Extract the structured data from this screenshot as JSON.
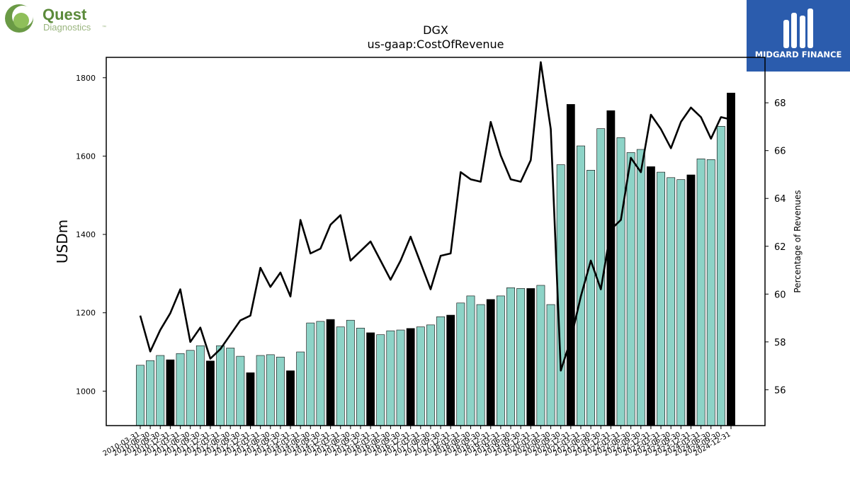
{
  "logos": {
    "left_line1": "Quest",
    "left_line2": "Diagnostics",
    "left_mark": "™",
    "right_name": "MIDGARD FINANCE",
    "brand_green": "#5b8a3a",
    "brand_blue": "#2b5cad"
  },
  "chart_data": {
    "type": "bar",
    "title": "DGX",
    "subtitle": "us-gaap:CostOfRevenue",
    "ylabel": "USDm",
    "y2label": "Percentage of Revenues",
    "ylim": [
      912,
      1852
    ],
    "y2lim": [
      54.5,
      69.9
    ],
    "yticks": [
      1000,
      1200,
      1400,
      1600,
      1800
    ],
    "y2ticks": [
      56,
      58,
      60,
      62,
      64,
      66,
      68
    ],
    "bar_color": "#8dd3c7",
    "highlight_color": "#000000",
    "highlight_rule": "fiscal year-end quarters (12-31) drawn in black",
    "line_color": "#000000",
    "categories": [
      "2010-03-31",
      "2010-06-30",
      "2010-09-30",
      "2010-12-31",
      "2011-03-31",
      "2011-06-30",
      "2011-09-30",
      "2011-12-31",
      "2012-03-31",
      "2012-06-30",
      "2012-09-30",
      "2012-12-31",
      "2013-03-31",
      "2013-06-30",
      "2013-09-30",
      "2013-12-31",
      "2014-03-31",
      "2014-06-30",
      "2014-09-30",
      "2014-12-31",
      "2015-03-31",
      "2015-06-30",
      "2015-09-30",
      "2015-12-31",
      "2016-03-31",
      "2016-06-30",
      "2016-09-30",
      "2016-12-31",
      "2017-03-31",
      "2017-06-30",
      "2017-09-30",
      "2017-12-31",
      "2018-03-31",
      "2018-06-30",
      "2018-09-30",
      "2018-12-31",
      "2019-03-31",
      "2019-06-30",
      "2019-09-30",
      "2019-12-31",
      "2020-03-31",
      "2020-06-30",
      "2020-09-30",
      "2020-12-31",
      "2021-03-31",
      "2021-06-30",
      "2021-09-30",
      "2021-12-31",
      "2022-03-31",
      "2022-06-30",
      "2022-09-30",
      "2022-12-31",
      "2023-03-31",
      "2023-06-30",
      "2023-09-30",
      "2023-12-31",
      "2024-03-31",
      "2024-06-30",
      "2024-09-30",
      "2024-12-31"
    ],
    "series": [
      {
        "kind": "bar",
        "axis": "left",
        "values": [
          1066,
          1078,
          1091,
          1080,
          1096,
          1104,
          1116,
          1077,
          1116,
          1110,
          1089,
          1047,
          1091,
          1093,
          1087,
          1052,
          1100,
          1174,
          1178,
          1183,
          1164,
          1181,
          1161,
          1149,
          1144,
          1154,
          1156,
          1160,
          1164,
          1169,
          1190,
          1194,
          1225,
          1243,
          1221,
          1234,
          1243,
          1264,
          1262,
          1262,
          1270,
          1221,
          1578,
          1732,
          1626,
          1564,
          1670,
          1716,
          1647,
          1609,
          1617,
          1573,
          1559,
          1545,
          1540,
          1552,
          1593,
          1591,
          1676,
          1761
        ]
      },
      {
        "kind": "line",
        "axis": "right",
        "values": [
          59.1,
          57.6,
          58.5,
          59.2,
          60.2,
          58.0,
          58.6,
          57.3,
          57.7,
          58.3,
          58.9,
          59.1,
          61.1,
          60.3,
          60.9,
          59.9,
          63.1,
          61.7,
          61.9,
          62.9,
          63.3,
          61.4,
          61.8,
          62.2,
          61.4,
          60.6,
          61.4,
          62.4,
          61.3,
          60.2,
          61.6,
          61.7,
          65.1,
          64.8,
          64.7,
          67.2,
          65.8,
          64.8,
          64.7,
          65.6,
          69.7,
          66.9,
          56.8,
          58.1,
          59.9,
          61.4,
          60.2,
          62.7,
          63.1,
          65.7,
          65.1,
          67.5,
          66.9,
          66.1,
          67.2,
          67.8,
          67.4,
          66.5,
          67.4,
          67.3
        ]
      }
    ]
  }
}
